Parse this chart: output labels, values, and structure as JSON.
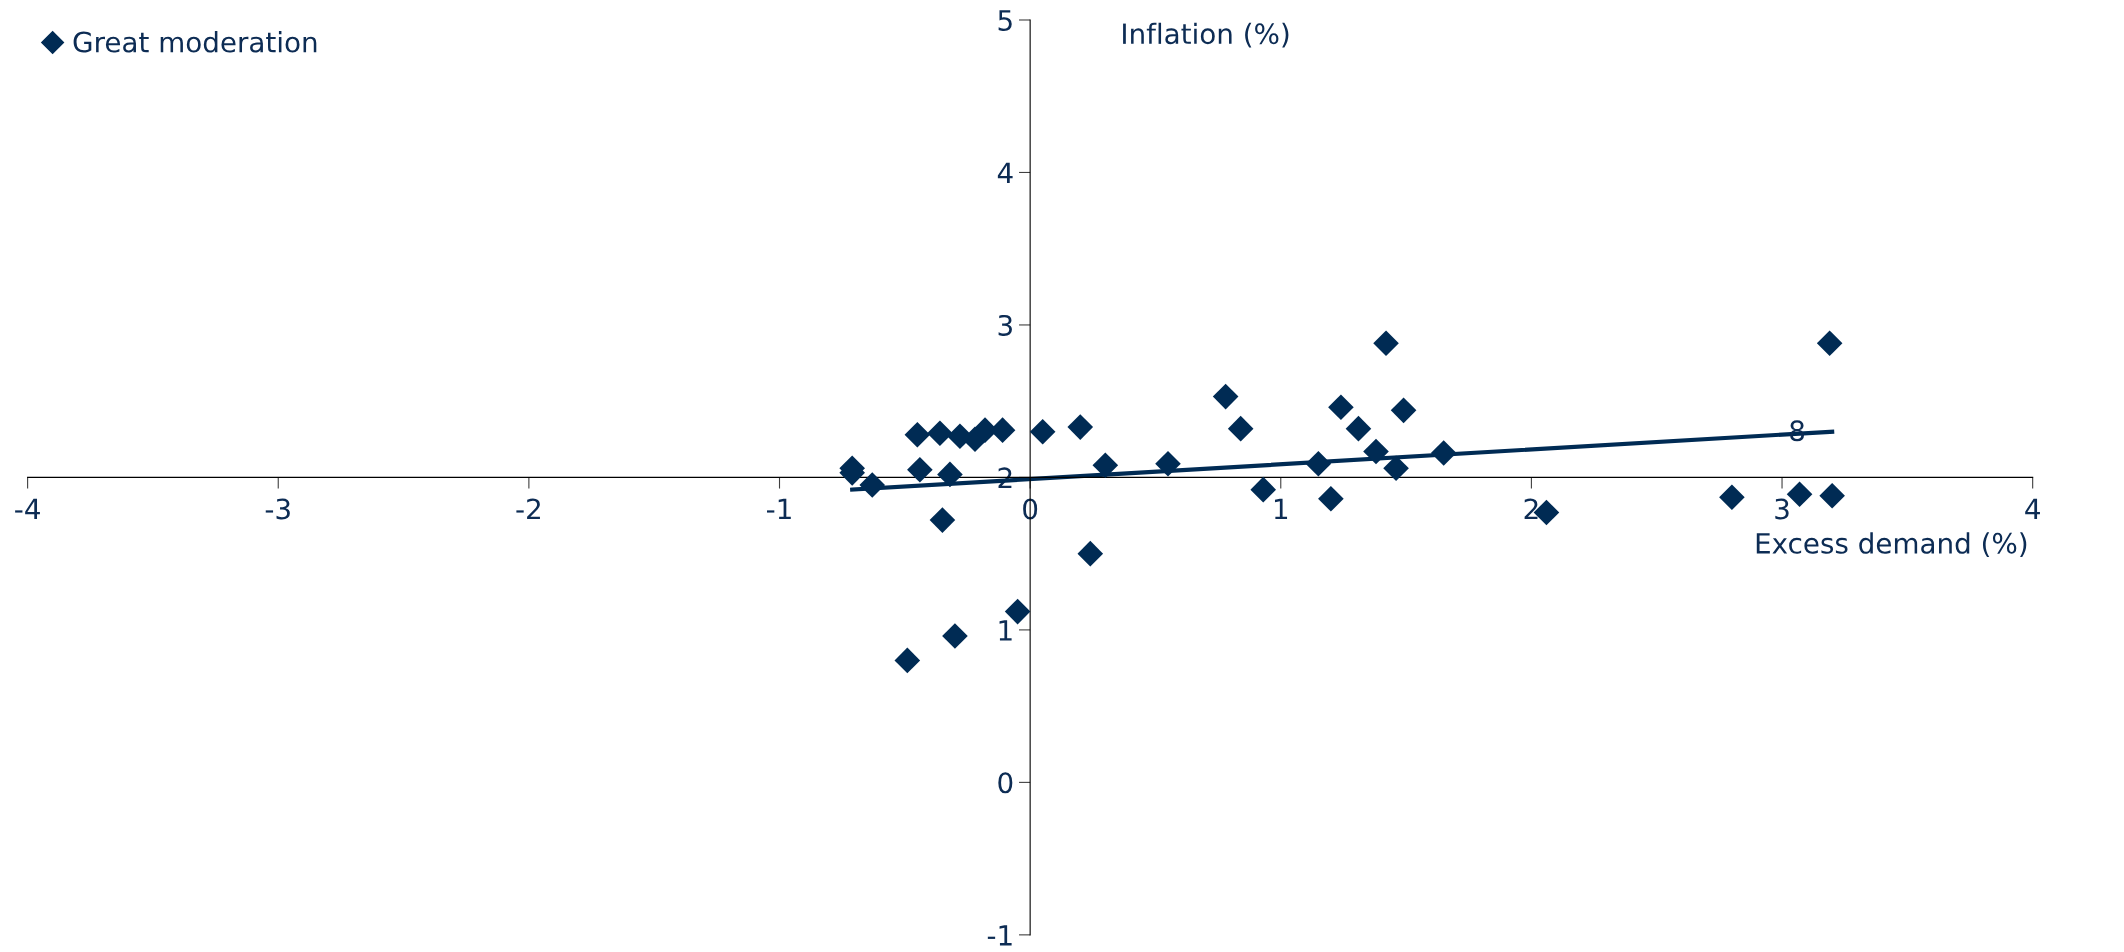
{
  "chart_data": {
    "type": "scatter",
    "xlabel": "Excess demand (%)",
    "ylabel": "Inflation (%)",
    "xlim": [
      -4,
      4
    ],
    "ylim": [
      -1,
      5
    ],
    "xticks": [
      -4,
      -3,
      -2,
      -1,
      0,
      1,
      2,
      3,
      4
    ],
    "yticks": [
      -1,
      0,
      1,
      2,
      3,
      4,
      5
    ],
    "grid": false,
    "legend": "top left",
    "marker": "diamond",
    "series": [
      {
        "name": "Great moderation",
        "color": "#002b54",
        "x": [
          -0.71,
          -0.71,
          -0.63,
          -0.45,
          -0.44,
          -0.35,
          -0.32,
          -0.49,
          -0.3,
          -0.36,
          -0.28,
          -0.22,
          -0.18,
          -0.11,
          -0.05,
          0.05,
          0.2,
          0.24,
          0.3,
          0.55,
          0.78,
          0.84,
          0.93,
          1.15,
          1.2,
          1.24,
          1.31,
          1.38,
          1.42,
          1.46,
          1.49,
          1.65,
          2.06,
          2.8,
          3.07,
          3.2,
          3.19
        ],
        "values": [
          2.06,
          2.03,
          1.95,
          2.28,
          2.05,
          1.72,
          2.02,
          0.8,
          0.96,
          2.29,
          2.27,
          2.25,
          2.31,
          2.31,
          1.12,
          2.3,
          2.33,
          1.5,
          2.08,
          2.09,
          2.53,
          2.32,
          1.92,
          2.09,
          1.86,
          2.46,
          2.32,
          2.17,
          2.88,
          2.06,
          2.44,
          2.16,
          1.77,
          1.87,
          1.89,
          1.88,
          2.88
        ]
      },
      {
        "type": "line",
        "color": "#002b54",
        "x": [
          -0.71,
          3.2
        ],
        "values": [
          1.92,
          2.3
        ],
        "marker": "none"
      }
    ],
    "annotations": [
      {
        "text": "8",
        "x": 3.06,
        "y": 2.29
      }
    ]
  }
}
